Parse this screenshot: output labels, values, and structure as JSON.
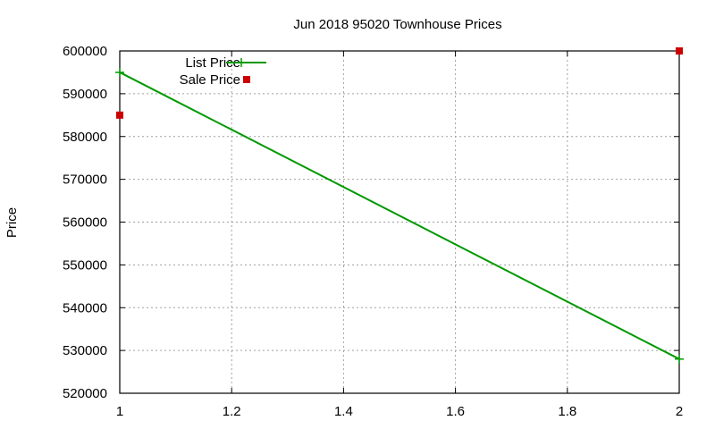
{
  "chart_data": {
    "type": "line",
    "title": "Jun 2018 95020 Townhouse Prices",
    "xlabel": "",
    "ylabel": "Price",
    "xlim": [
      1,
      2
    ],
    "ylim": [
      520000,
      600000
    ],
    "x_ticks": [
      "1",
      "1.2",
      "1.4",
      "1.6",
      "1.8",
      "2"
    ],
    "y_ticks": [
      "520000",
      "530000",
      "540000",
      "550000",
      "560000",
      "570000",
      "580000",
      "590000",
      "600000"
    ],
    "grid": true,
    "legend_position": "top-left",
    "series": [
      {
        "name": "List Price",
        "style": "line+cross",
        "color": "#009900",
        "x": [
          1,
          2
        ],
        "values": [
          595000,
          528000
        ]
      },
      {
        "name": "Sale Price",
        "style": "square",
        "color": "#cc0000",
        "x": [
          1,
          2
        ],
        "values": [
          585000,
          600000
        ]
      }
    ]
  }
}
